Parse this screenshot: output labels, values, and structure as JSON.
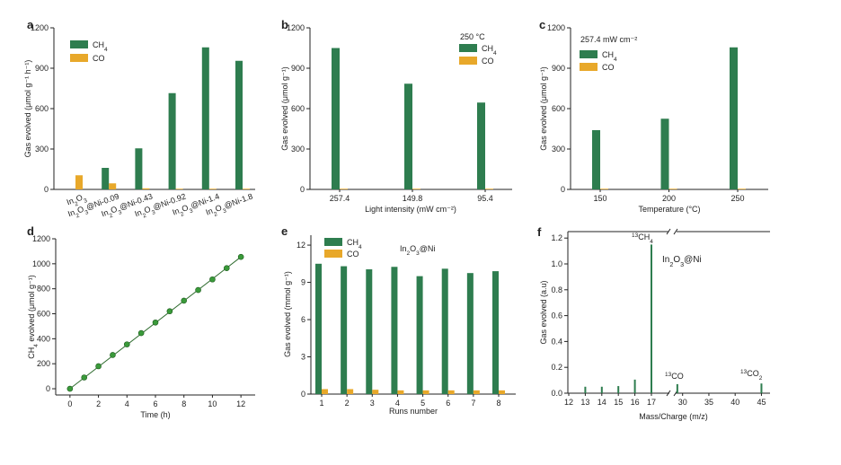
{
  "colors": {
    "ch4": "#2e7d4f",
    "co": "#e8a82a",
    "line": "#2e6b2e",
    "marker": "#3a9a3a",
    "axis": "#222222"
  },
  "chart_data": [
    {
      "panel": "a",
      "type": "bar",
      "categories": [
        "In2O3",
        "In2O3@Ni-0.09",
        "In2O3@Ni-0.43",
        "In2O3@Ni-0.92",
        "In2O3@Ni-1.4",
        "In2O3@Ni-1.8"
      ],
      "series": [
        {
          "name": "CH4",
          "values": [
            0,
            160,
            305,
            715,
            1055,
            955
          ]
        },
        {
          "name": "CO",
          "values": [
            105,
            45,
            8,
            5,
            5,
            5
          ]
        }
      ],
      "ylabel": "Gas evolved (μmol g⁻¹ h⁻¹)",
      "ylim": [
        0,
        1200
      ],
      "yticks": [
        0,
        300,
        600,
        900,
        1200
      ],
      "legend": [
        "CH4",
        "CO"
      ]
    },
    {
      "panel": "b",
      "type": "bar",
      "categories": [
        "257.4",
        "149.8",
        "95.4"
      ],
      "series": [
        {
          "name": "CH4",
          "values": [
            1050,
            785,
            645
          ]
        },
        {
          "name": "CO",
          "values": [
            5,
            5,
            5
          ]
        }
      ],
      "xlabel": "Light intensity (mW cm⁻²)",
      "ylabel": "Gas evolved (μmol g⁻¹)",
      "ylim": [
        0,
        1200
      ],
      "yticks": [
        0,
        300,
        600,
        900,
        1200
      ],
      "annotation": "250 °C",
      "legend": [
        "CH4",
        "CO"
      ]
    },
    {
      "panel": "c",
      "type": "bar",
      "categories": [
        "150",
        "200",
        "250"
      ],
      "series": [
        {
          "name": "CH4",
          "values": [
            440,
            525,
            1055
          ]
        },
        {
          "name": "CO",
          "values": [
            5,
            5,
            5
          ]
        }
      ],
      "xlabel": "Temperature (°C)",
      "ylabel": "Gas evolved (μmol g⁻¹)",
      "ylim": [
        0,
        1200
      ],
      "yticks": [
        0,
        300,
        600,
        900,
        1200
      ],
      "annotation": "257.4 mW cm⁻²",
      "legend": [
        "CH4",
        "CO"
      ]
    },
    {
      "panel": "d",
      "type": "line",
      "x": [
        0,
        1,
        2,
        3,
        4,
        5,
        6,
        7,
        8,
        9,
        10,
        11,
        12
      ],
      "y": [
        0,
        90,
        180,
        270,
        355,
        445,
        530,
        620,
        705,
        790,
        875,
        965,
        1055
      ],
      "xlabel": "Time (h)",
      "ylabel": "CH4 evolved (μmol g⁻¹)",
      "xlim": [
        -1,
        13
      ],
      "xticks": [
        0,
        2,
        4,
        6,
        8,
        10,
        12
      ],
      "ylim": [
        -50,
        1200
      ],
      "yticks": [
        0,
        200,
        400,
        600,
        800,
        1000,
        1200
      ]
    },
    {
      "panel": "e",
      "type": "bar",
      "categories": [
        "1",
        "2",
        "3",
        "4",
        "5",
        "6",
        "7",
        "8"
      ],
      "series": [
        {
          "name": "CH4",
          "values": [
            10.5,
            10.3,
            10.05,
            10.25,
            9.5,
            10.1,
            9.75,
            9.9
          ]
        },
        {
          "name": "CO",
          "values": [
            0.4,
            0.4,
            0.35,
            0.3,
            0.3,
            0.3,
            0.3,
            0.3
          ]
        }
      ],
      "xlabel": "Runs number",
      "ylabel": "Gas evolved (mmol g⁻¹)",
      "ylim": [
        0,
        12.8
      ],
      "yticks": [
        0,
        3,
        6,
        9,
        12
      ],
      "annotation": "In2O3@Ni",
      "legend": [
        "CH4",
        "CO"
      ]
    },
    {
      "panel": "f",
      "type": "bar",
      "categories": [
        "13",
        "14",
        "15",
        "16",
        "17",
        "29",
        "45"
      ],
      "values": [
        0.05,
        0.05,
        0.055,
        0.105,
        1.15,
        0.07,
        0.075
      ],
      "xlabel": "Mass/Charge (m/z)",
      "ylabel": "Gas evolved (a.u)",
      "ylim": [
        0,
        1.25
      ],
      "yticks": [
        0,
        0.2,
        0.4,
        0.6,
        0.8,
        1.0,
        1.2
      ],
      "xticks_left": [
        "12",
        "13",
        "14",
        "15",
        "16",
        "17"
      ],
      "xticks_right": [
        "30",
        "35",
        "40",
        "45"
      ],
      "peak_labels": [
        "13CH4",
        "13CO",
        "13CO2"
      ],
      "annotation": "In2O3@Ni"
    }
  ]
}
